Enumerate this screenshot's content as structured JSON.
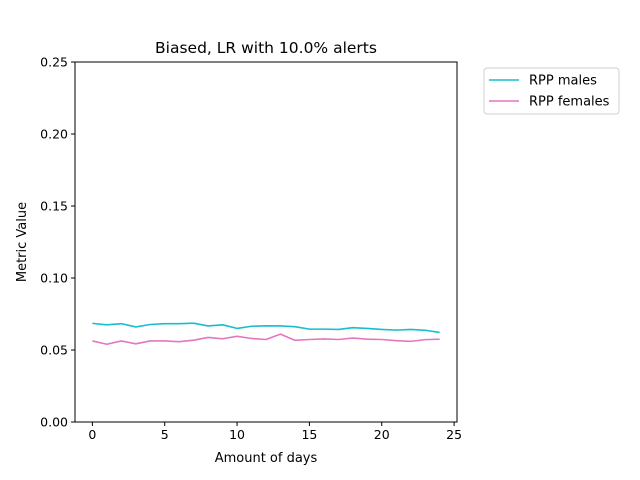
{
  "chart_data": {
    "type": "line",
    "title": "Biased, LR with 10.0% alerts",
    "xlabel": "Amount of days",
    "ylabel": "Metric Value",
    "xlim": [
      -1.2,
      25.2
    ],
    "ylim": [
      0,
      0.25
    ],
    "xticks": [
      0,
      5,
      10,
      15,
      20,
      25
    ],
    "xtick_labels": [
      "0",
      "5",
      "10",
      "15",
      "20",
      "25"
    ],
    "yticks": [
      0,
      0.05,
      0.1,
      0.15,
      0.2,
      0.25
    ],
    "ytick_labels": [
      "0.00",
      "0.05",
      "0.10",
      "0.15",
      "0.20",
      "0.25"
    ],
    "grid": false,
    "legend_position": "outside top-right",
    "x": [
      0,
      1,
      2,
      3,
      4,
      5,
      6,
      7,
      8,
      9,
      10,
      11,
      12,
      13,
      14,
      15,
      16,
      17,
      18,
      19,
      20,
      21,
      22,
      23,
      24
    ],
    "series": [
      {
        "name": "RPP males",
        "color": "#17becf",
        "values": [
          0.0685,
          0.0675,
          0.0683,
          0.066,
          0.0677,
          0.0683,
          0.0683,
          0.0686,
          0.0667,
          0.0675,
          0.065,
          0.0665,
          0.0668,
          0.0667,
          0.0662,
          0.0645,
          0.0645,
          0.0643,
          0.0655,
          0.065,
          0.0643,
          0.0638,
          0.0643,
          0.0637,
          0.0622
        ]
      },
      {
        "name": "RPP females",
        "color": "#e377c2",
        "values": [
          0.0563,
          0.054,
          0.0563,
          0.0543,
          0.0563,
          0.0563,
          0.0558,
          0.0568,
          0.0587,
          0.0578,
          0.0595,
          0.058,
          0.0573,
          0.061,
          0.0567,
          0.0573,
          0.0577,
          0.0573,
          0.0583,
          0.0575,
          0.0573,
          0.0565,
          0.056,
          0.0572,
          0.0575
        ]
      }
    ]
  }
}
